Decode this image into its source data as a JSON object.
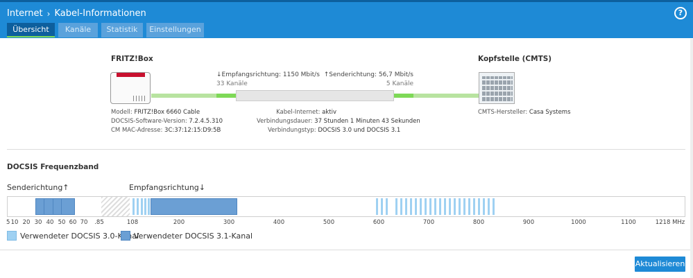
{
  "header": {
    "breadcrumb": [
      "Internet",
      "Kabel-Informationen"
    ],
    "help_icon": "?",
    "tabs": [
      "Übersicht",
      "Kanäle",
      "Statistik",
      "Einstellungen"
    ],
    "active_tab": "Übersicht"
  },
  "overview": {
    "device_title": "FRITZ!Box",
    "cmts_title": "Kopfstelle (CMTS)",
    "downstream_prefix": "↓Empfangsrichtung: ",
    "downstream_rate": "1150 Mbit/s",
    "downstream_channels": "33 Kanäle",
    "upstream_prefix": "↑Senderichtung: ",
    "upstream_rate": "56,7 Mbit/s",
    "upstream_channels": "5 Kanäle",
    "device_info": [
      {
        "label": "Modell: ",
        "value": "FRITZ!Box 6660 Cable"
      },
      {
        "label": "DOCSIS-Software-Version: ",
        "value": "7.2.4.5.310"
      },
      {
        "label": "CM MAC-Adresse: ",
        "value": "3C:37:12:15:D9:5B"
      }
    ],
    "connection_info": [
      {
        "label": "Kabel-Internet: ",
        "value": "aktiv"
      },
      {
        "label": "Verbindungsdauer: ",
        "value": "37 Stunden 1 Minuten 43 Sekunden"
      },
      {
        "label": "Verbindungstyp: ",
        "value": "DOCSIS 3.0 und DOCSIS 3.1"
      }
    ],
    "cmts_info": {
      "label": "CMTS-Hersteller: ",
      "value": "Casa Systems"
    }
  },
  "frequency": {
    "title": "DOCSIS Frequenzband",
    "upstream_label": "Senderichtung↑",
    "downstream_label": "Empfangsrichtung↓",
    "ticks_up": [
      "5",
      "10",
      "20",
      "30",
      "40",
      "50",
      "60",
      "70",
      ".85"
    ],
    "ticks_down": [
      "108",
      "200",
      "300",
      "400",
      "500",
      "600",
      "700",
      "800",
      "900",
      "1000",
      "1100",
      "1218 MHz"
    ],
    "legend": [
      {
        "key": "v30",
        "label": "Verwendeter DOCSIS 3.0-Kanal"
      },
      {
        "key": "v31",
        "label": "Verwendeter DOCSIS 3.1-Kanal"
      }
    ]
  },
  "footer": {
    "refresh_label": "Aktualisieren"
  },
  "colors": {
    "header": "#1e8ad6",
    "tab_active": "#0d5f9d",
    "docsis30": "#9fd1f2",
    "docsis31": "#6b9fd4",
    "link_green": "#7ed957"
  }
}
